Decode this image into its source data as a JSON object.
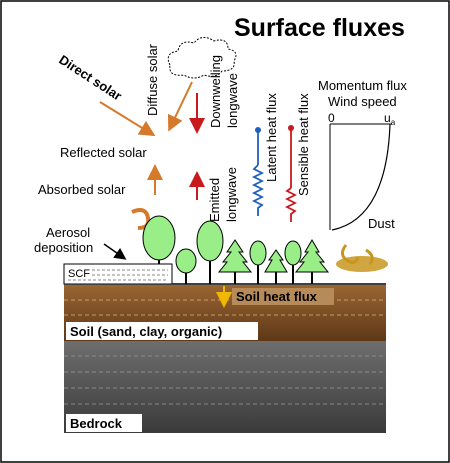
{
  "title": "Surface fluxes",
  "labels": {
    "direct_solar": "Direct solar",
    "diffuse_solar": "Diffuse solar",
    "downwelling_1": "Downwelling",
    "downwelling_2": "longwave",
    "reflected_solar": "Reflected solar",
    "absorbed_solar": "Absorbed solar",
    "emitted_1": "Emitted",
    "emitted_2": "longwave",
    "latent_heat_flux": "Latent heat flux",
    "sensible_heat_flux": "Sensible heat flux",
    "momentum_flux": "Momentum flux",
    "wind_speed": "Wind speed",
    "axis_zero": "0",
    "axis_u": "u",
    "axis_u_sub": "a",
    "aerosol_1": "Aerosol",
    "aerosol_2": "deposition",
    "dust": "Dust",
    "scf": "SCF",
    "soil_heat_flux": "Soil heat flux",
    "soil": "Soil (sand, clay, organic)",
    "bedrock": "Bedrock"
  },
  "colors": {
    "solar_arrow": "#d47a2a",
    "longwave_arrow": "#c8191d",
    "latent": "#1f5fbf",
    "sensible": "#c8191d",
    "tree_fill": "#99ee88",
    "soil": "#7a4a22",
    "bedrock": "#555555",
    "dust": "#c8961e"
  }
}
